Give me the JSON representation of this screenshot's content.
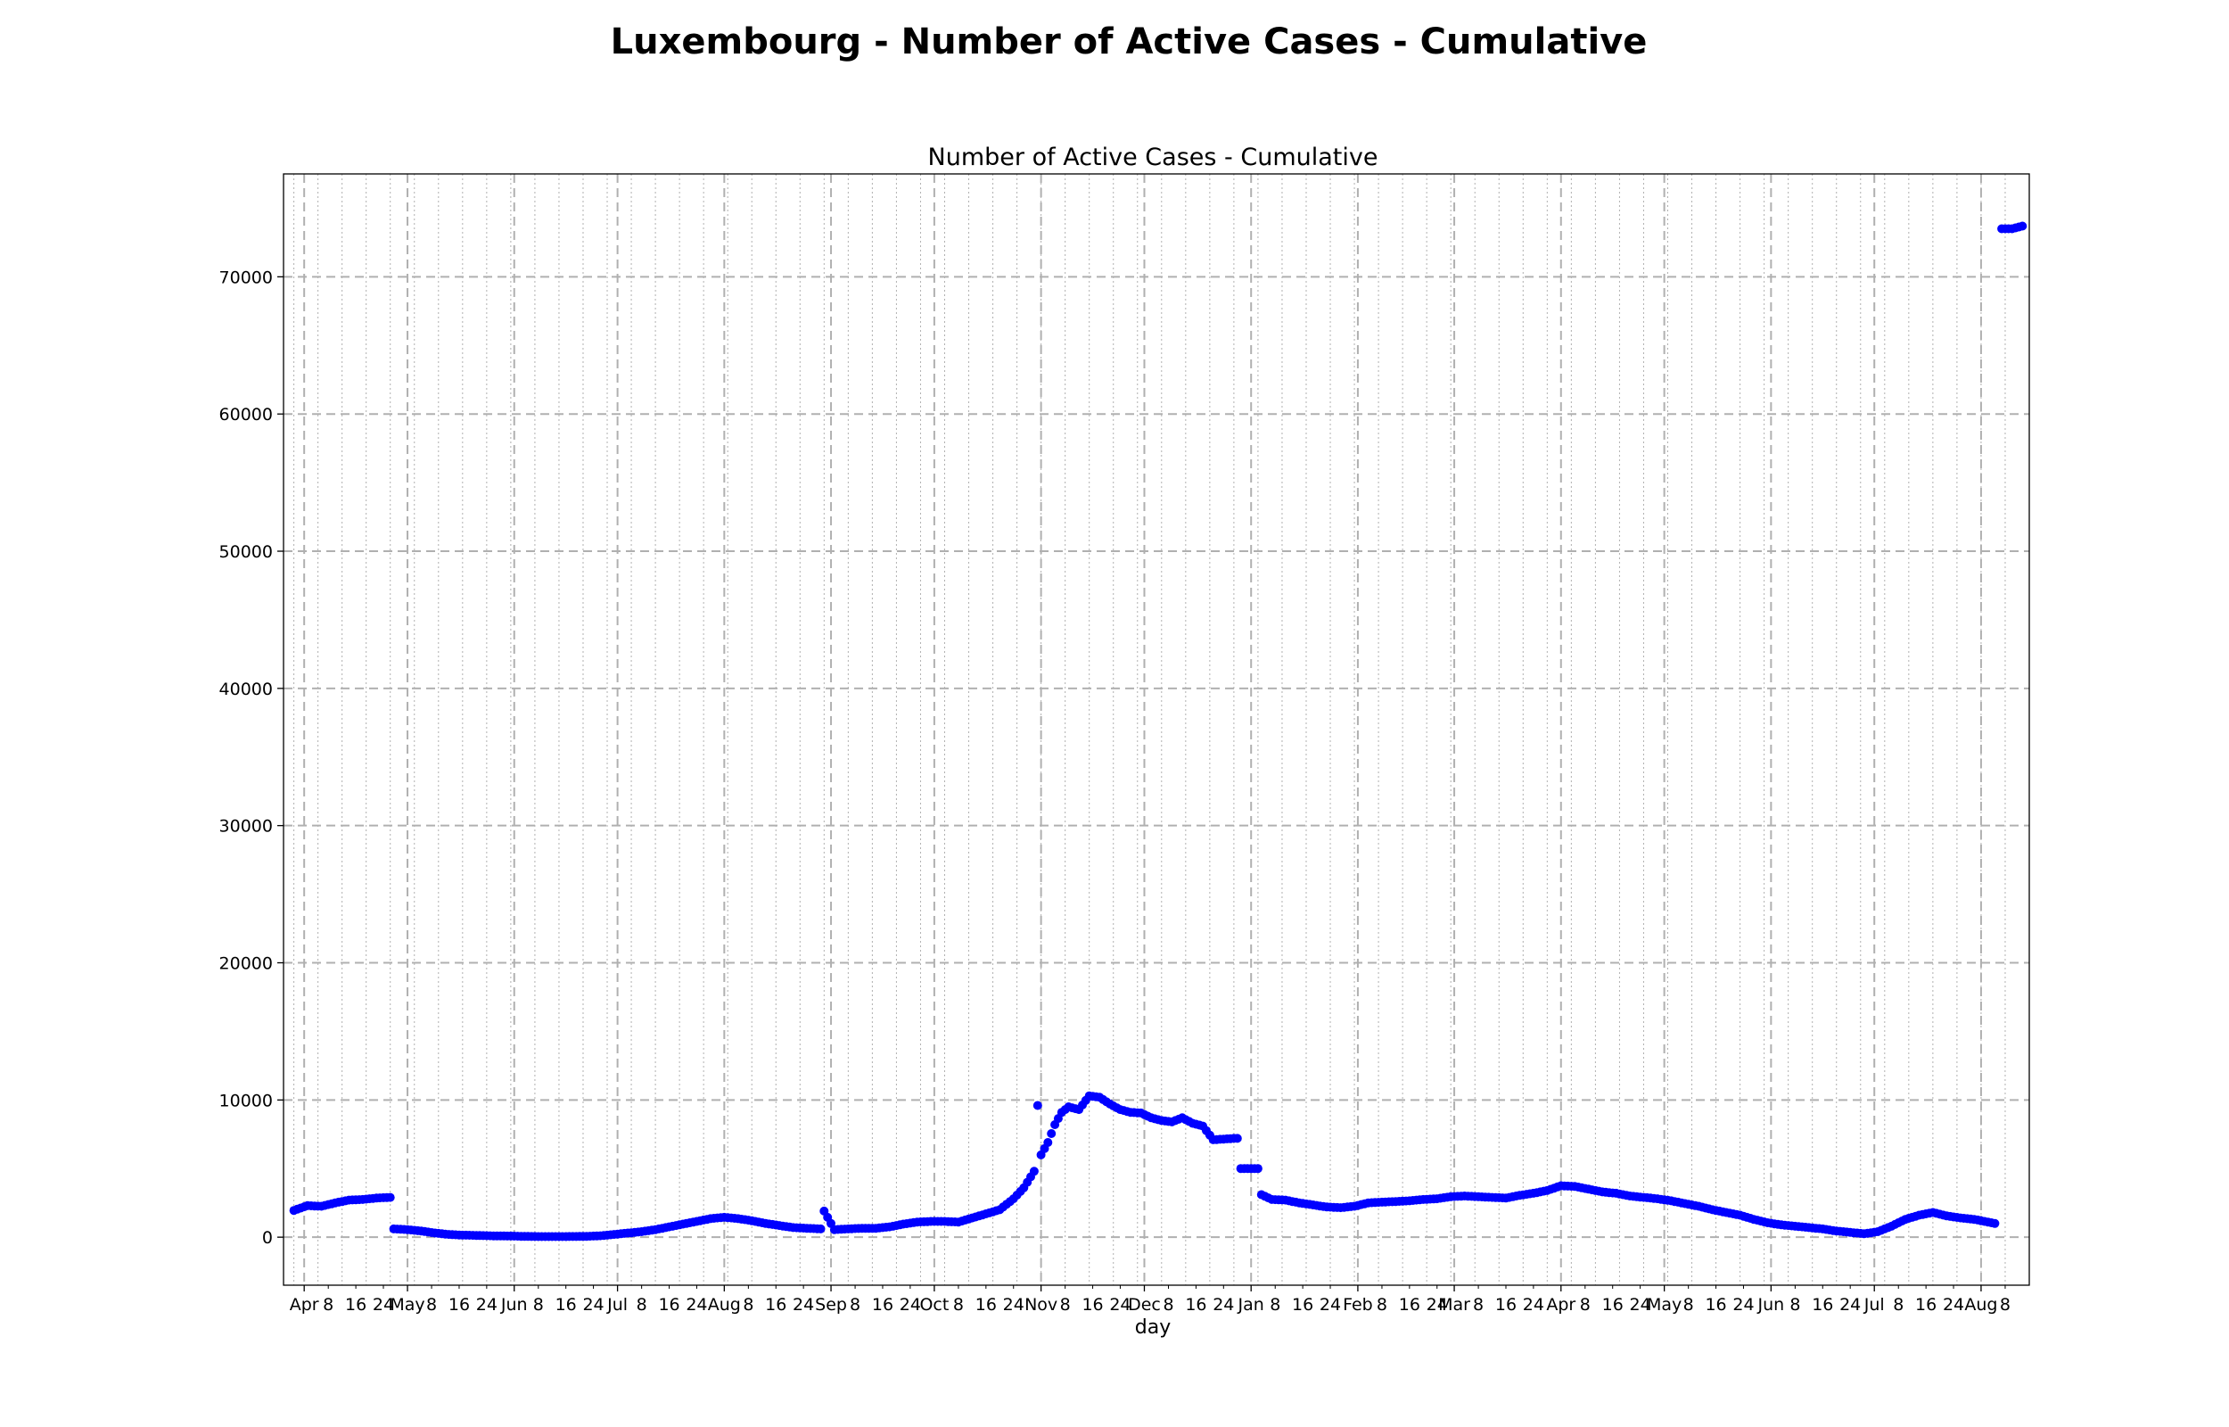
{
  "chart_data": {
    "type": "scatter",
    "suptitle": "Luxembourg - Number of Active Cases - Cumulative",
    "title": "Number of Active Cases - Cumulative",
    "xlabel": "day",
    "ylabel": "",
    "ylim": [
      -3500,
      77500
    ],
    "xlim": [
      "2020-03-26",
      "2021-08-15"
    ],
    "grid": true,
    "marker_color": "#0000ff",
    "y_ticks": [
      0,
      10000,
      20000,
      30000,
      40000,
      50000,
      60000,
      70000
    ],
    "x_month_ticks": [
      {
        "label": "Apr",
        "date": "2020-04-01"
      },
      {
        "label": "May",
        "date": "2020-05-01"
      },
      {
        "label": "Jun",
        "date": "2020-06-01"
      },
      {
        "label": "Jul",
        "date": "2020-07-01"
      },
      {
        "label": "Aug",
        "date": "2020-08-01"
      },
      {
        "label": "Sep",
        "date": "2020-09-01"
      },
      {
        "label": "Oct",
        "date": "2020-10-01"
      },
      {
        "label": "Nov",
        "date": "2020-11-01"
      },
      {
        "label": "Dec",
        "date": "2020-12-01"
      },
      {
        "label": "Jan",
        "date": "2021-01-01"
      },
      {
        "label": "Feb",
        "date": "2021-02-01"
      },
      {
        "label": "Mar",
        "date": "2021-03-01"
      },
      {
        "label": "Apr",
        "date": "2021-04-01"
      },
      {
        "label": "May",
        "date": "2021-05-01"
      },
      {
        "label": "Jun",
        "date": "2021-06-01"
      },
      {
        "label": "Jul",
        "date": "2021-07-01"
      },
      {
        "label": "Aug",
        "date": "2021-08-01"
      }
    ],
    "x_day_tick_labels": [
      "8",
      "16",
      "24"
    ],
    "series": [
      {
        "points": [
          [
            "2020-03-29",
            1950
          ],
          [
            "2020-04-02",
            2300
          ],
          [
            "2020-04-06",
            2250
          ],
          [
            "2020-04-10",
            2500
          ],
          [
            "2020-04-14",
            2700
          ],
          [
            "2020-04-18",
            2750
          ],
          [
            "2020-04-22",
            2850
          ],
          [
            "2020-04-26",
            2900
          ],
          [
            "2020-04-27",
            600
          ],
          [
            "2020-05-01",
            550
          ],
          [
            "2020-05-05",
            450
          ],
          [
            "2020-05-09",
            300
          ],
          [
            "2020-05-13",
            200
          ],
          [
            "2020-05-17",
            150
          ],
          [
            "2020-05-21",
            130
          ],
          [
            "2020-05-25",
            100
          ],
          [
            "2020-05-29",
            90
          ],
          [
            "2020-06-02",
            70
          ],
          [
            "2020-06-06",
            50
          ],
          [
            "2020-06-10",
            40
          ],
          [
            "2020-06-14",
            40
          ],
          [
            "2020-06-18",
            50
          ],
          [
            "2020-06-22",
            60
          ],
          [
            "2020-06-26",
            100
          ],
          [
            "2020-06-30",
            200
          ],
          [
            "2020-07-04",
            300
          ],
          [
            "2020-07-08",
            400
          ],
          [
            "2020-07-12",
            550
          ],
          [
            "2020-07-16",
            750
          ],
          [
            "2020-07-20",
            950
          ],
          [
            "2020-07-24",
            1150
          ],
          [
            "2020-07-28",
            1350
          ],
          [
            "2020-08-01",
            1450
          ],
          [
            "2020-08-05",
            1350
          ],
          [
            "2020-08-09",
            1200
          ],
          [
            "2020-08-13",
            1000
          ],
          [
            "2020-08-17",
            850
          ],
          [
            "2020-08-21",
            700
          ],
          [
            "2020-08-25",
            650
          ],
          [
            "2020-08-29",
            600
          ],
          [
            "2020-08-30",
            1900
          ],
          [
            "2020-09-02",
            550
          ],
          [
            "2020-09-06",
            600
          ],
          [
            "2020-09-10",
            650
          ],
          [
            "2020-09-14",
            650
          ],
          [
            "2020-09-18",
            750
          ],
          [
            "2020-09-22",
            950
          ],
          [
            "2020-09-26",
            1100
          ],
          [
            "2020-09-30",
            1150
          ],
          [
            "2020-10-04",
            1150
          ],
          [
            "2020-10-08",
            1100
          ],
          [
            "2020-10-12",
            1400
          ],
          [
            "2020-10-16",
            1700
          ],
          [
            "2020-10-20",
            2000
          ],
          [
            "2020-10-24",
            2800
          ],
          [
            "2020-10-27",
            3600
          ],
          [
            "2020-10-30",
            4800
          ],
          [
            "2020-10-31",
            9600
          ],
          [
            "2020-11-01",
            6000
          ],
          [
            "2020-11-03",
            6900
          ],
          [
            "2020-11-05",
            8200
          ],
          [
            "2020-11-07",
            9100
          ],
          [
            "2020-11-09",
            9500
          ],
          [
            "2020-11-12",
            9300
          ],
          [
            "2020-11-15",
            10300
          ],
          [
            "2020-11-18",
            10200
          ],
          [
            "2020-11-21",
            9700
          ],
          [
            "2020-11-24",
            9300
          ],
          [
            "2020-11-27",
            9100
          ],
          [
            "2020-11-30",
            9050
          ],
          [
            "2020-12-03",
            8700
          ],
          [
            "2020-12-06",
            8500
          ],
          [
            "2020-12-09",
            8400
          ],
          [
            "2020-12-12",
            8700
          ],
          [
            "2020-12-15",
            8300
          ],
          [
            "2020-12-18",
            8100
          ],
          [
            "2020-12-21",
            7100
          ],
          [
            "2020-12-24",
            7150
          ],
          [
            "2020-12-27",
            7200
          ],
          [
            "2020-12-29",
            5000
          ],
          [
            "2021-01-01",
            5000
          ],
          [
            "2021-01-04",
            3100
          ],
          [
            "2021-01-07",
            2750
          ],
          [
            "2021-01-11",
            2700
          ],
          [
            "2021-01-15",
            2500
          ],
          [
            "2021-01-19",
            2350
          ],
          [
            "2021-01-23",
            2200
          ],
          [
            "2021-01-27",
            2150
          ],
          [
            "2021-01-31",
            2250
          ],
          [
            "2021-02-04",
            2500
          ],
          [
            "2021-02-08",
            2550
          ],
          [
            "2021-02-12",
            2600
          ],
          [
            "2021-02-16",
            2650
          ],
          [
            "2021-02-20",
            2750
          ],
          [
            "2021-02-24",
            2800
          ],
          [
            "2021-02-28",
            2950
          ],
          [
            "2021-03-04",
            3000
          ],
          [
            "2021-03-08",
            2950
          ],
          [
            "2021-03-12",
            2900
          ],
          [
            "2021-03-16",
            2850
          ],
          [
            "2021-03-20",
            3050
          ],
          [
            "2021-03-24",
            3200
          ],
          [
            "2021-03-28",
            3400
          ],
          [
            "2021-04-01",
            3750
          ],
          [
            "2021-04-05",
            3700
          ],
          [
            "2021-04-09",
            3500
          ],
          [
            "2021-04-13",
            3300
          ],
          [
            "2021-04-17",
            3200
          ],
          [
            "2021-04-21",
            3000
          ],
          [
            "2021-04-25",
            2900
          ],
          [
            "2021-04-29",
            2800
          ],
          [
            "2021-05-03",
            2650
          ],
          [
            "2021-05-07",
            2450
          ],
          [
            "2021-05-11",
            2250
          ],
          [
            "2021-05-15",
            2000
          ],
          [
            "2021-05-19",
            1800
          ],
          [
            "2021-05-23",
            1600
          ],
          [
            "2021-05-27",
            1300
          ],
          [
            "2021-05-31",
            1050
          ],
          [
            "2021-06-04",
            900
          ],
          [
            "2021-06-08",
            800
          ],
          [
            "2021-06-12",
            700
          ],
          [
            "2021-06-16",
            600
          ],
          [
            "2021-06-20",
            450
          ],
          [
            "2021-06-24",
            350
          ],
          [
            "2021-06-28",
            250
          ],
          [
            "2021-07-02",
            400
          ],
          [
            "2021-07-06",
            800
          ],
          [
            "2021-07-10",
            1300
          ],
          [
            "2021-07-14",
            1600
          ],
          [
            "2021-07-18",
            1800
          ],
          [
            "2021-07-22",
            1550
          ],
          [
            "2021-07-26",
            1400
          ],
          [
            "2021-07-30",
            1300
          ],
          [
            "2021-08-03",
            1100
          ],
          [
            "2021-08-05",
            1000
          ],
          [
            "2021-08-07",
            73500
          ],
          [
            "2021-08-10",
            73500
          ],
          [
            "2021-08-13",
            73700
          ]
        ]
      }
    ]
  }
}
